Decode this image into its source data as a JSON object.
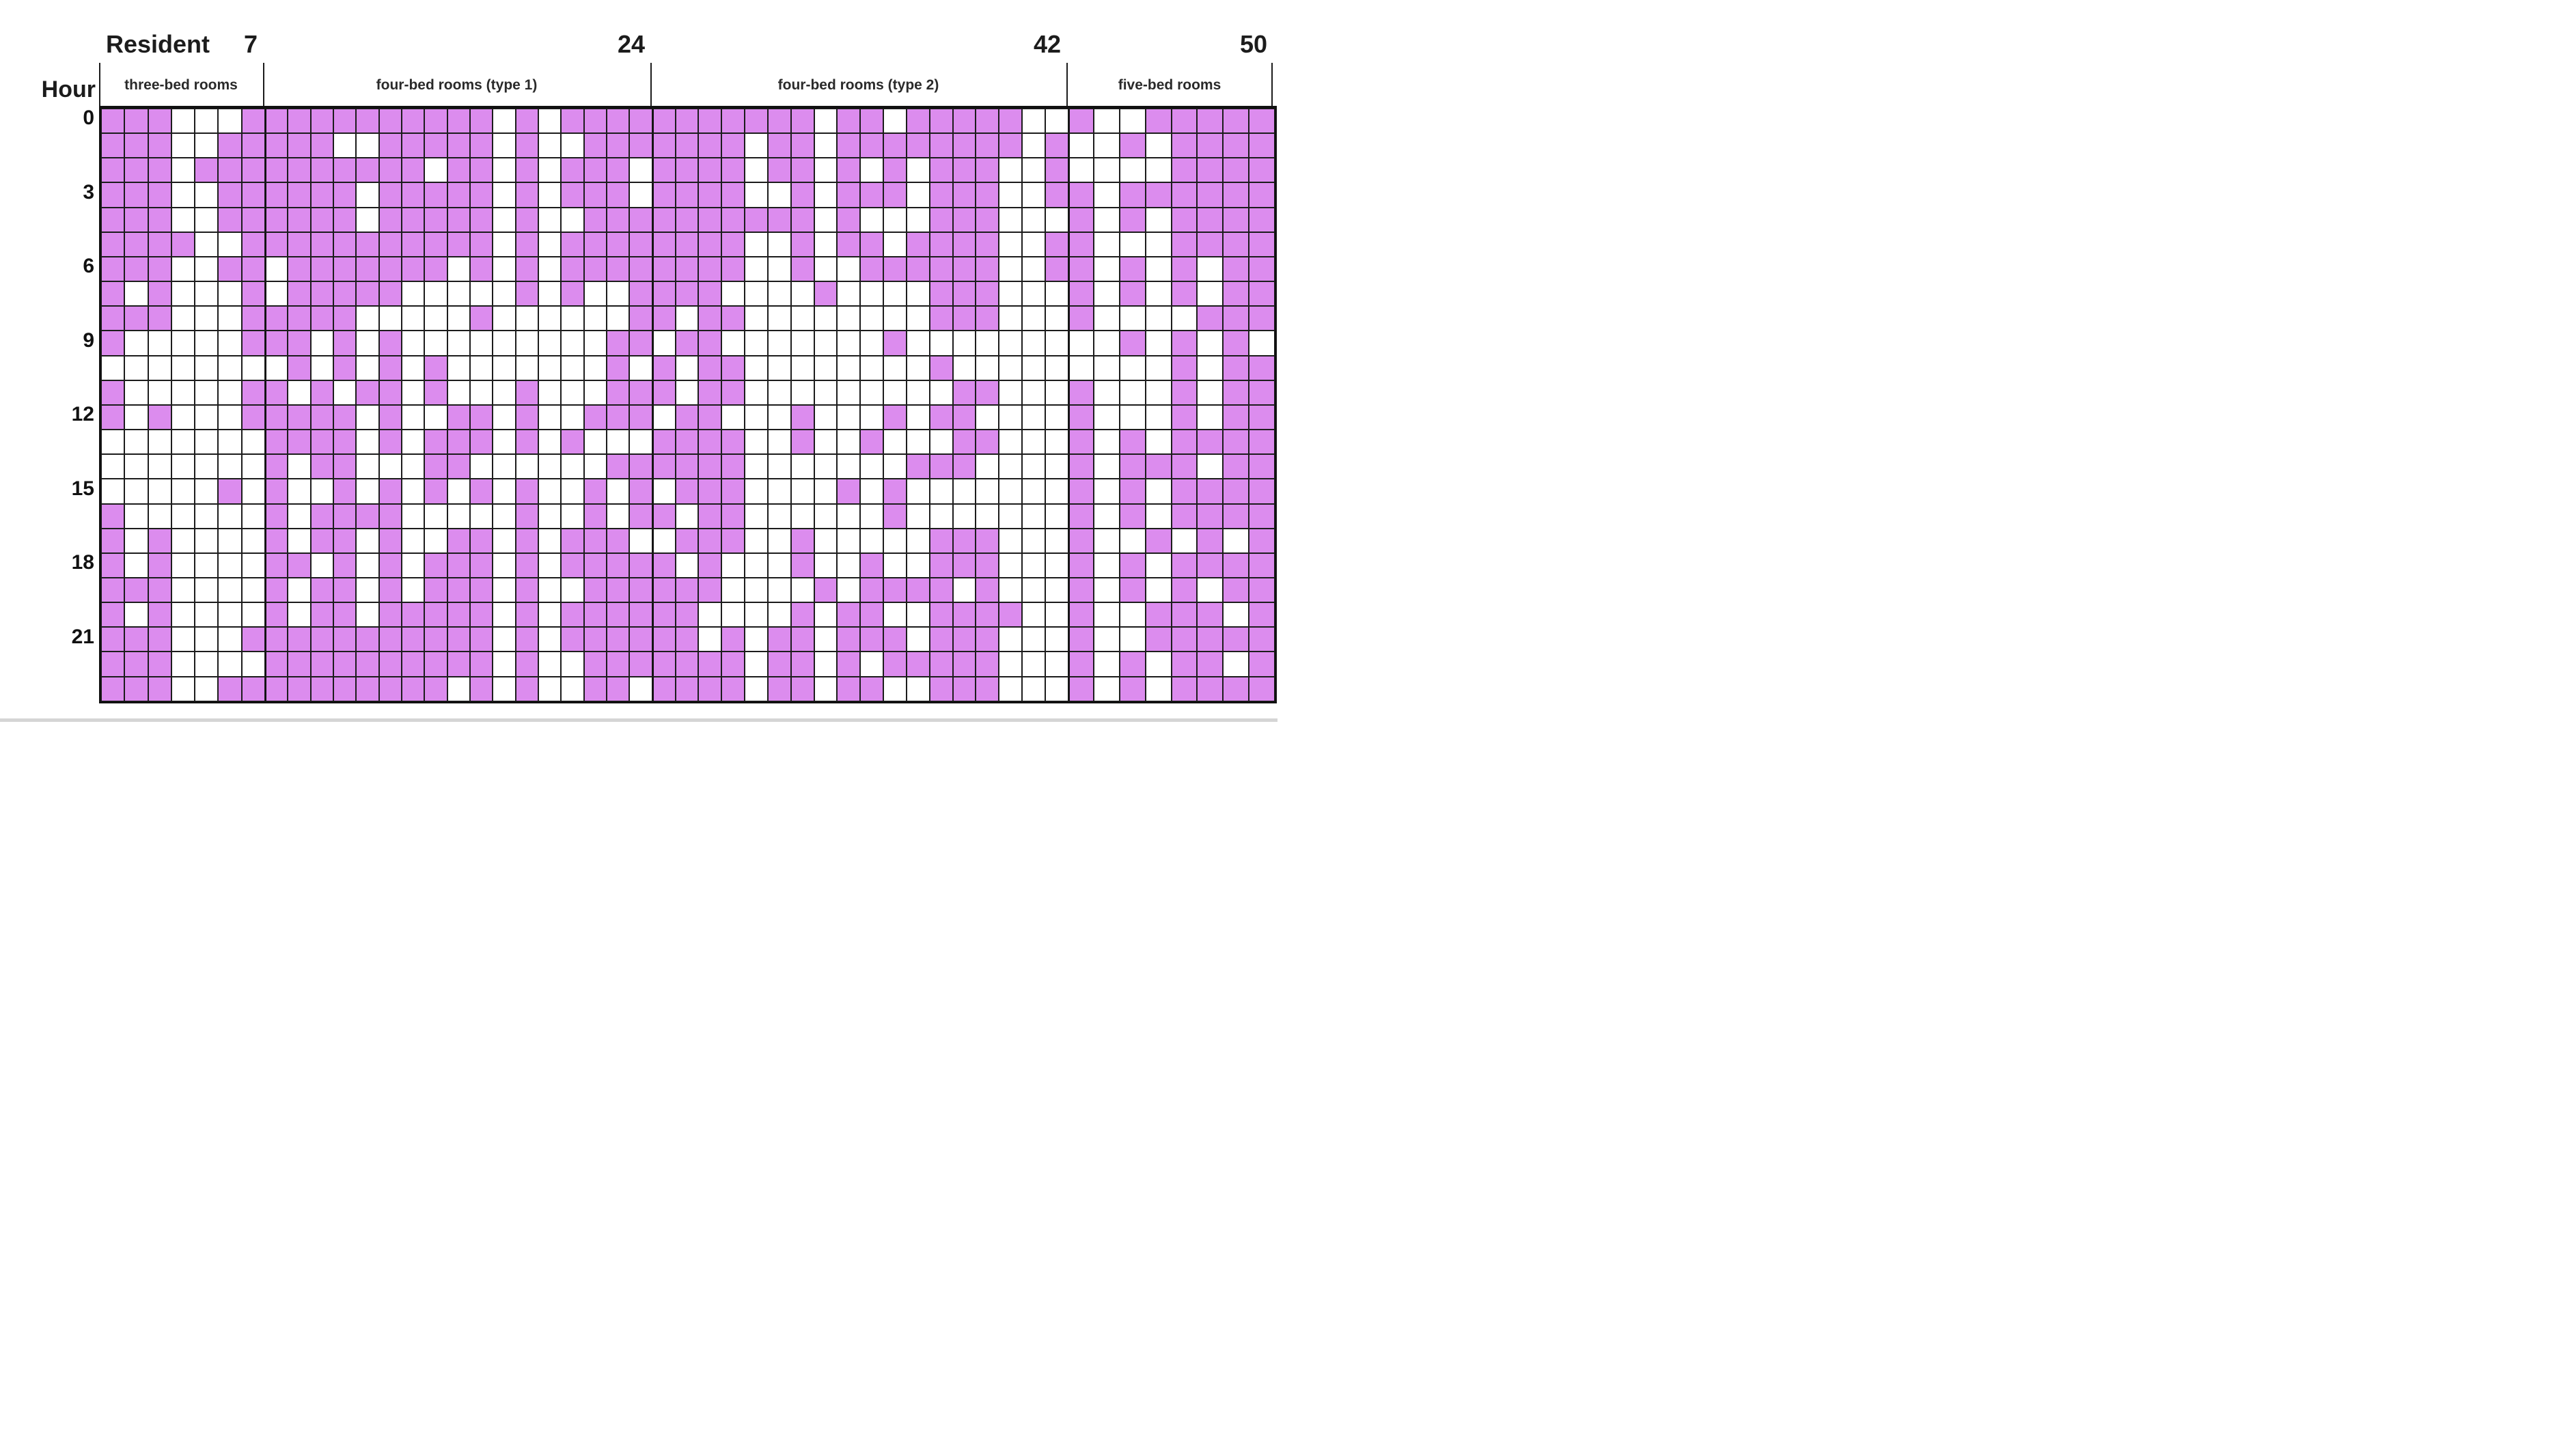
{
  "title": {
    "resident_label": "Resident",
    "hour_label": "Hour"
  },
  "resident_axis": {
    "ticks": [
      "7",
      "24",
      "42",
      "50"
    ]
  },
  "hour_axis": {
    "ticks": [
      "0",
      "3",
      "6",
      "9",
      "12",
      "15",
      "18",
      "21"
    ]
  },
  "sections": [
    {
      "label": "three-bed rooms",
      "residents": 7
    },
    {
      "label": "four-bed rooms (type 1)",
      "residents": 17
    },
    {
      "label": "four-bed rooms (type 2)",
      "residents": 18
    },
    {
      "label": "five-bed rooms",
      "residents": 8
    }
  ],
  "colors": {
    "filled": "#DC8CEE",
    "empty": "#FFFFFF",
    "grid_line": "#1c1c1c"
  },
  "chart_data": {
    "type": "heatmap",
    "x_label": "Resident",
    "y_label": "Hour",
    "x_range": [
      1,
      50
    ],
    "y_range": [
      0,
      23
    ],
    "cell_values": "1 = filled (violet), 0 = empty (white)",
    "column_groups": [
      {
        "label": "three-bed rooms",
        "from": 1,
        "to": 7
      },
      {
        "label": "four-bed rooms (type 1)",
        "from": 8,
        "to": 24
      },
      {
        "label": "four-bed rooms (type 2)",
        "from": 25,
        "to": 42
      },
      {
        "label": "five-bed rooms",
        "from": 43,
        "to": 50
      }
    ],
    "hours": [
      0,
      1,
      2,
      3,
      4,
      5,
      6,
      7,
      8,
      9,
      10,
      11,
      12,
      13,
      14,
      15,
      16,
      17,
      18,
      19,
      20,
      21,
      22,
      23
    ],
    "matrix": [
      "11100011111111111010111111111110110111110010011111",
      "11100111110011111010011111110110111111110100101111",
      "11101111111111011010111011110110101011100100001111",
      "11100111111011111010111011110010111011100110111111",
      "11100111111011111010011111111110100011100010101111",
      "11110011111111111010111111110010110111100110001111",
      "11100110111111101010111111110010011111100110101011",
      "10100010111110000010100111100001000011100010101011",
      "11100011111000001000000110110000000011100010000111",
      "10000011101010000000001101100000001000000000101010",
      "00000000101010100000001010110000000010000000001011",
      "10000011010110100010001110110000000001100010001011",
      "10100011111010011010011101100010001011000010001011",
      "00000001111010111010100011110010010001100010101111",
      "00000001011000110000001111110000000111000010111011",
      "00000101001010101010010101110000101000000010101111",
      "10000001011110000010010110110000001000000010101111",
      "10100001011010011010111001110010000011100010010101",
      "10100001101010111010111110100010010011100010101111",
      "11100001011010111010011111100001011110100010101011",
      "10100001011011111010111111000010110011110010011101",
      "11100011111111111010111111010110111011100010011111",
      "11100001111111111010011111110110101111100010101101",
      "11100111111111101010011011110110110011100010101111"
    ]
  }
}
